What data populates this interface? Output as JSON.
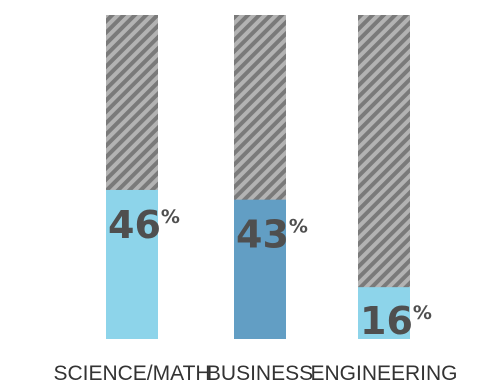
{
  "chart_data": {
    "type": "bar",
    "categories": [
      "SCIENCE/MATH",
      "BUSINESS",
      "ENGINEERING"
    ],
    "values": [
      46,
      43,
      16
    ],
    "value_suffix": "%",
    "ylim": [
      0,
      100
    ],
    "grid": false,
    "legend": "none"
  },
  "colors": {
    "bar_fills": [
      "#8dd4ea",
      "#629ec4",
      "#8dd4ea"
    ],
    "remainder_stripe_dark": "#7a7a7a",
    "remainder_stripe_light": "#b3b3b3",
    "value_text": "#4f4f4f",
    "category_text": "#333333"
  }
}
